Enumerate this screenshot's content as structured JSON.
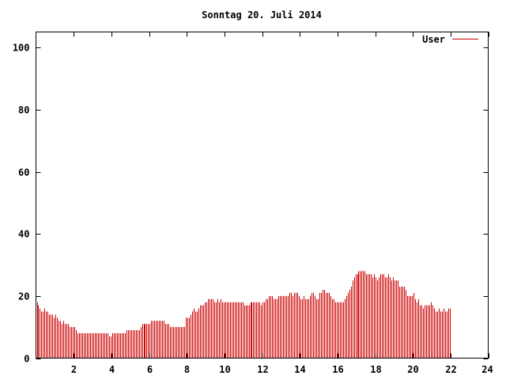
{
  "chart_data": {
    "type": "bar",
    "title": "Sonntag 20. Juli 2014",
    "xlabel": "",
    "ylabel": "",
    "xlim": [
      0,
      24
    ],
    "ylim": [
      0,
      105
    ],
    "x_ticks": [
      "2",
      "4",
      "6",
      "8",
      "10",
      "12",
      "14",
      "16",
      "18",
      "20",
      "22",
      "24"
    ],
    "x_tick_values": [
      2,
      4,
      6,
      8,
      10,
      12,
      14,
      16,
      18,
      20,
      22,
      24
    ],
    "y_ticks": [
      "0",
      "20",
      "40",
      "60",
      "80",
      "100"
    ],
    "y_tick_values": [
      0,
      20,
      40,
      60,
      80,
      100
    ],
    "grid": false,
    "legend_position": "top-right",
    "bar_color": "#cc0000",
    "series": [
      {
        "name": "User",
        "x_step_hours": 0.0833,
        "values": [
          18,
          17,
          16,
          15,
          15,
          16,
          15,
          15,
          14,
          14,
          14,
          13,
          14,
          13,
          12,
          12,
          11,
          12,
          11,
          11,
          11,
          10,
          10,
          10,
          10,
          9,
          8,
          8,
          8,
          8,
          8,
          8,
          8,
          8,
          8,
          8,
          8,
          8,
          8,
          8,
          8,
          8,
          8,
          8,
          8,
          8,
          7,
          7,
          8,
          8,
          8,
          8,
          8,
          8,
          8,
          8,
          8,
          9,
          9,
          9,
          9,
          9,
          9,
          9,
          9,
          9,
          10,
          11,
          11,
          11,
          11,
          11,
          11,
          12,
          12,
          12,
          12,
          12,
          12,
          12,
          12,
          12,
          11,
          11,
          11,
          10,
          10,
          10,
          10,
          10,
          10,
          10,
          10,
          10,
          10,
          13,
          13,
          13,
          14,
          15,
          16,
          15,
          15,
          16,
          17,
          17,
          17,
          18,
          18,
          19,
          19,
          19,
          19,
          18,
          18,
          19,
          18,
          19,
          18,
          18,
          18,
          18,
          18,
          18,
          18,
          18,
          18,
          18,
          18,
          18,
          18,
          18,
          17,
          17,
          17,
          17,
          18,
          18,
          18,
          18,
          18,
          18,
          18,
          17,
          18,
          18,
          19,
          19,
          20,
          20,
          20,
          19,
          19,
          19,
          20,
          20,
          20,
          20,
          20,
          20,
          20,
          21,
          21,
          20,
          21,
          21,
          21,
          20,
          19,
          19,
          20,
          19,
          19,
          19,
          20,
          21,
          21,
          20,
          19,
          19,
          21,
          21,
          22,
          22,
          21,
          21,
          21,
          20,
          19,
          19,
          18,
          18,
          18,
          18,
          18,
          18,
          19,
          20,
          21,
          22,
          23,
          25,
          26,
          27,
          27,
          28,
          28,
          28,
          28,
          28,
          27,
          27,
          27,
          27,
          26,
          27,
          26,
          25,
          26,
          27,
          27,
          27,
          26,
          26,
          27,
          26,
          25,
          26,
          25,
          25,
          25,
          23,
          23,
          23,
          23,
          22,
          20,
          20,
          20,
          20,
          21,
          19,
          18,
          19,
          17,
          17,
          16,
          17,
          17,
          17,
          17,
          18,
          17,
          16,
          15,
          15,
          16,
          15,
          15,
          16,
          15,
          15,
          16,
          16
        ]
      }
    ]
  }
}
